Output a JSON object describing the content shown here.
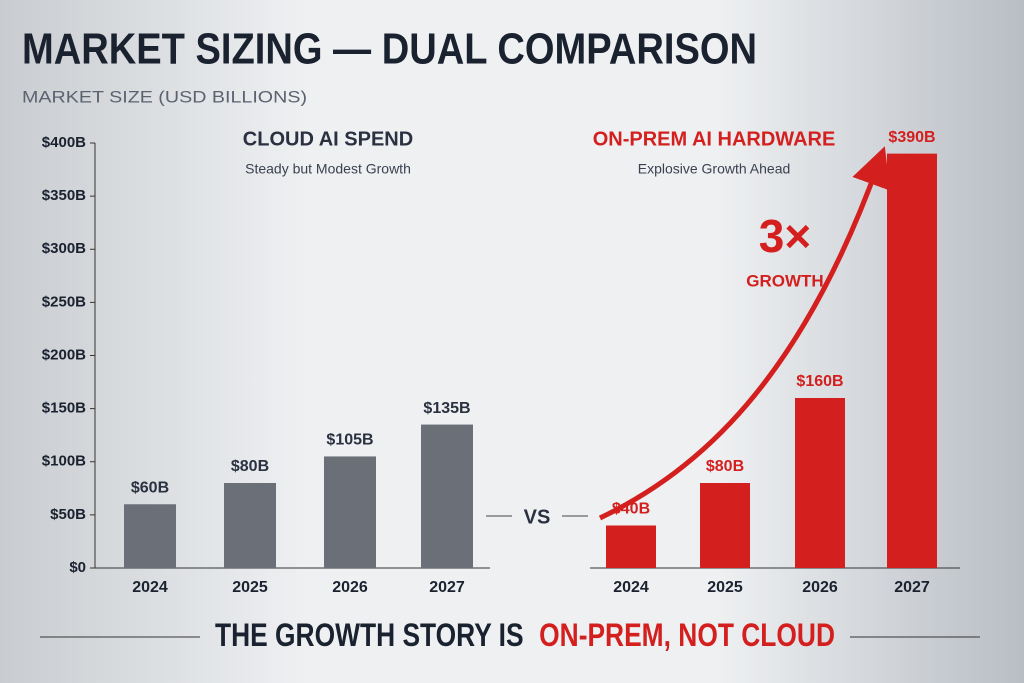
{
  "title": "MARKET SIZING — DUAL COMPARISON",
  "subtitle": "MARKET SIZE (USD BILLIONS)",
  "separator": "VS",
  "footer": {
    "lead": "THE GROWTH STORY IS",
    "highlight": "ON-PREM, NOT CLOUD"
  },
  "chart_data": [
    {
      "type": "bar",
      "title": "CLOUD AI SPEND",
      "subtitle": "Steady but Modest Growth",
      "title_color": "#2a3140",
      "categories": [
        "2024",
        "2025",
        "2026",
        "2027"
      ],
      "values": [
        60,
        80,
        105,
        135
      ],
      "value_labels": [
        "$60B",
        "$80B",
        "$105B",
        "$135B"
      ],
      "color": "#6b7078",
      "ylim": [
        0,
        400
      ],
      "yticks": [
        {
          "value": 0,
          "label": "$0"
        },
        {
          "value": 50,
          "label": "$50B"
        },
        {
          "value": 100,
          "label": "$100B"
        },
        {
          "value": 150,
          "label": "$150B"
        },
        {
          "value": 200,
          "label": "$200B"
        },
        {
          "value": 250,
          "label": "$250B"
        },
        {
          "value": 300,
          "label": "$300B"
        },
        {
          "value": 350,
          "label": "$350B"
        },
        {
          "value": 400,
          "label": "$400B"
        }
      ],
      "grid": false
    },
    {
      "type": "bar",
      "title": "ON-PREM AI HARDWARE",
      "subtitle": "Explosive Growth Ahead",
      "title_color": "#d41f1f",
      "categories": [
        "2024",
        "2025",
        "2026",
        "2027"
      ],
      "values": [
        40,
        80,
        160,
        390
      ],
      "value_labels": [
        "$40B",
        "$80B",
        "$160B",
        "$390B"
      ],
      "color": "#d41f1f",
      "ylim": [
        0,
        400
      ],
      "grid": false,
      "annotations": [
        "3×",
        "GROWTH"
      ]
    }
  ]
}
